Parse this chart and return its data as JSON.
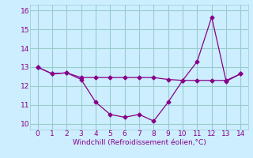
{
  "x": [
    0,
    1,
    2,
    3,
    4,
    5,
    6,
    7,
    8,
    9,
    10,
    11,
    12,
    13,
    14
  ],
  "line1_y": [
    13.0,
    12.65,
    12.7,
    12.45,
    12.45,
    12.45,
    12.45,
    12.45,
    12.45,
    12.35,
    12.3,
    12.3,
    12.3,
    12.3,
    12.65
  ],
  "line2_y": [
    13.0,
    12.65,
    12.7,
    12.35,
    11.15,
    10.5,
    10.35,
    10.5,
    10.15,
    11.15,
    12.3,
    13.3,
    15.65,
    12.25,
    12.65
  ],
  "line_color": "#880088",
  "marker": "D",
  "marker_size": 2.5,
  "background_color": "#cceeff",
  "grid_color": "#99cccc",
  "xlabel": "Windchill (Refroidissement éolien,°C)",
  "xlim": [
    -0.5,
    14.5
  ],
  "ylim": [
    9.7,
    16.3
  ],
  "xticks": [
    0,
    1,
    2,
    3,
    4,
    5,
    6,
    7,
    8,
    9,
    10,
    11,
    12,
    13,
    14
  ],
  "yticks": [
    10,
    11,
    12,
    13,
    14,
    15,
    16
  ],
  "xlabel_color": "#880088",
  "tick_color": "#880088",
  "label_fontsize": 6.5,
  "tick_fontsize": 6.5
}
